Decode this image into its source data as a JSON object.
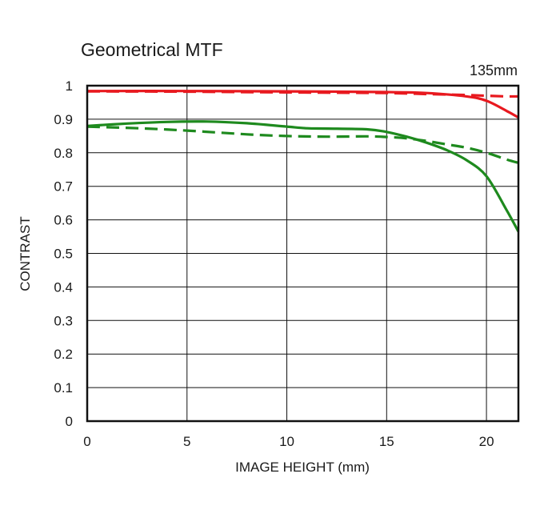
{
  "chart_data": {
    "type": "line",
    "title": "Geometrical MTF",
    "annotation": "135mm",
    "xlabel": "IMAGE HEIGHT (mm)",
    "ylabel": "CONTRAST",
    "xlim": [
      0,
      21.6
    ],
    "ylim": [
      0,
      1
    ],
    "xticks": [
      "0",
      "5",
      "10",
      "15",
      "20"
    ],
    "yticks": [
      "0",
      "0.1",
      "0.2",
      "0.3",
      "0.4",
      "0.5",
      "0.6",
      "0.7",
      "0.8",
      "0.9",
      "1"
    ],
    "grid": true,
    "legend": "none",
    "series": [
      {
        "color": "#e8191f",
        "style": "solid",
        "points": [
          [
            0,
            0.984
          ],
          [
            5,
            0.984
          ],
          [
            10,
            0.983
          ],
          [
            15,
            0.981
          ],
          [
            17,
            0.978
          ],
          [
            19,
            0.968
          ],
          [
            20,
            0.955
          ],
          [
            21,
            0.925
          ],
          [
            21.6,
            0.905
          ]
        ]
      },
      {
        "color": "#e8191f",
        "style": "dashed",
        "points": [
          [
            0,
            0.983
          ],
          [
            5,
            0.982
          ],
          [
            10,
            0.98
          ],
          [
            15,
            0.978
          ],
          [
            17,
            0.975
          ],
          [
            19,
            0.972
          ],
          [
            20,
            0.97
          ],
          [
            21,
            0.968
          ],
          [
            21.6,
            0.968
          ]
        ]
      },
      {
        "color": "#1e8a1e",
        "style": "solid",
        "points": [
          [
            0,
            0.88
          ],
          [
            2,
            0.887
          ],
          [
            4,
            0.892
          ],
          [
            6,
            0.893
          ],
          [
            8,
            0.888
          ],
          [
            10,
            0.878
          ],
          [
            11,
            0.873
          ],
          [
            12,
            0.872
          ],
          [
            14,
            0.87
          ],
          [
            15,
            0.862
          ],
          [
            16,
            0.848
          ],
          [
            17,
            0.83
          ],
          [
            18,
            0.808
          ],
          [
            19,
            0.778
          ],
          [
            20,
            0.73
          ],
          [
            21,
            0.63
          ],
          [
            21.6,
            0.565
          ]
        ]
      },
      {
        "color": "#1e8a1e",
        "style": "dashed",
        "points": [
          [
            0,
            0.878
          ],
          [
            3,
            0.872
          ],
          [
            5,
            0.866
          ],
          [
            8,
            0.855
          ],
          [
            10,
            0.85
          ],
          [
            12,
            0.848
          ],
          [
            14,
            0.849
          ],
          [
            15,
            0.847
          ],
          [
            16,
            0.843
          ],
          [
            17,
            0.835
          ],
          [
            18,
            0.825
          ],
          [
            19,
            0.815
          ],
          [
            20,
            0.8
          ],
          [
            21,
            0.78
          ],
          [
            21.6,
            0.77
          ]
        ]
      }
    ]
  }
}
